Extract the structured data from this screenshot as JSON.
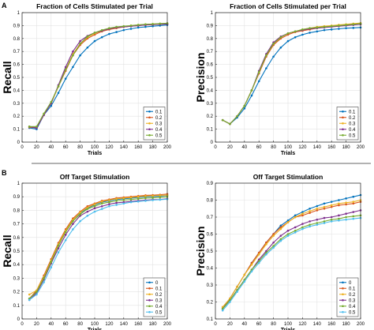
{
  "panels": [
    {
      "letter": "A"
    },
    {
      "letter": "B"
    }
  ],
  "colors": [
    "#0072bd",
    "#d95319",
    "#edb120",
    "#7e2f8e",
    "#77ac30",
    "#4dbeee"
  ],
  "chart_data": [
    {
      "type": "line",
      "title": "Fraction of Cells Stimulated per Trial",
      "xlabel": "Trials",
      "ylabel": "Recall",
      "xlim": [
        0,
        200
      ],
      "ylim": [
        0,
        1
      ],
      "xticks": [
        0,
        20,
        40,
        60,
        80,
        100,
        120,
        140,
        160,
        180,
        200
      ],
      "yticks": [
        0,
        0.1,
        0.2,
        0.3,
        0.4,
        0.5,
        0.6,
        0.7,
        0.8,
        0.9,
        1
      ],
      "x": [
        10,
        20,
        30,
        40,
        50,
        60,
        70,
        80,
        90,
        100,
        110,
        120,
        130,
        140,
        150,
        160,
        170,
        180,
        190,
        200
      ],
      "legend_position": "bottom-right",
      "series": [
        {
          "name": "0.1",
          "values": [
            0.11,
            0.1,
            0.21,
            0.28,
            0.38,
            0.49,
            0.58,
            0.67,
            0.73,
            0.78,
            0.81,
            0.835,
            0.85,
            0.865,
            0.875,
            0.885,
            0.89,
            0.895,
            0.9,
            0.905
          ]
        },
        {
          "name": "0.2",
          "values": [
            0.115,
            0.11,
            0.21,
            0.3,
            0.43,
            0.55,
            0.67,
            0.75,
            0.8,
            0.83,
            0.855,
            0.87,
            0.88,
            0.89,
            0.895,
            0.9,
            0.905,
            0.907,
            0.91,
            0.912
          ]
        },
        {
          "name": "0.3",
          "values": [
            0.12,
            0.115,
            0.22,
            0.3,
            0.43,
            0.56,
            0.68,
            0.76,
            0.81,
            0.84,
            0.86,
            0.875,
            0.885,
            0.89,
            0.9,
            0.905,
            0.91,
            0.912,
            0.915,
            0.917
          ]
        },
        {
          "name": "0.4",
          "values": [
            0.12,
            0.11,
            0.21,
            0.3,
            0.44,
            0.58,
            0.7,
            0.78,
            0.82,
            0.845,
            0.86,
            0.875,
            0.885,
            0.89,
            0.895,
            0.9,
            0.905,
            0.908,
            0.91,
            0.912
          ]
        },
        {
          "name": "0.5",
          "values": [
            0.12,
            0.12,
            0.22,
            0.31,
            0.43,
            0.56,
            0.67,
            0.76,
            0.815,
            0.845,
            0.865,
            0.88,
            0.89,
            0.895,
            0.9,
            0.905,
            0.91,
            0.912,
            0.915,
            0.918
          ]
        }
      ]
    },
    {
      "type": "line",
      "title": "Fraction of Cells Stimulated per Trial",
      "xlabel": "Trials",
      "ylabel": "Precision",
      "xlim": [
        0,
        200
      ],
      "ylim": [
        0,
        1
      ],
      "xticks": [
        0,
        20,
        40,
        60,
        80,
        100,
        120,
        140,
        160,
        180,
        200
      ],
      "yticks": [
        0,
        0.1,
        0.2,
        0.3,
        0.4,
        0.5,
        0.6,
        0.7,
        0.8,
        0.9,
        1
      ],
      "x": [
        10,
        20,
        30,
        40,
        50,
        60,
        70,
        80,
        90,
        100,
        110,
        120,
        130,
        140,
        150,
        160,
        170,
        180,
        190,
        200
      ],
      "legend_position": "bottom-right",
      "series": [
        {
          "name": "0.1",
          "values": [
            0.17,
            0.14,
            0.19,
            0.26,
            0.36,
            0.47,
            0.57,
            0.66,
            0.73,
            0.78,
            0.81,
            0.83,
            0.845,
            0.855,
            0.865,
            0.87,
            0.875,
            0.88,
            0.882,
            0.885
          ]
        },
        {
          "name": "0.2",
          "values": [
            0.17,
            0.14,
            0.2,
            0.28,
            0.4,
            0.53,
            0.66,
            0.75,
            0.8,
            0.83,
            0.85,
            0.86,
            0.87,
            0.88,
            0.89,
            0.895,
            0.9,
            0.905,
            0.907,
            0.91
          ]
        },
        {
          "name": "0.3",
          "values": [
            0.17,
            0.14,
            0.2,
            0.28,
            0.4,
            0.54,
            0.67,
            0.76,
            0.81,
            0.84,
            0.855,
            0.87,
            0.88,
            0.89,
            0.895,
            0.9,
            0.905,
            0.91,
            0.915,
            0.92
          ]
        },
        {
          "name": "0.4",
          "values": [
            0.17,
            0.14,
            0.2,
            0.28,
            0.4,
            0.55,
            0.68,
            0.77,
            0.815,
            0.84,
            0.855,
            0.865,
            0.875,
            0.88,
            0.885,
            0.89,
            0.895,
            0.9,
            0.905,
            0.91
          ]
        },
        {
          "name": "0.5",
          "values": [
            0.17,
            0.14,
            0.2,
            0.28,
            0.4,
            0.54,
            0.67,
            0.76,
            0.81,
            0.84,
            0.855,
            0.87,
            0.88,
            0.885,
            0.89,
            0.895,
            0.9,
            0.905,
            0.91,
            0.915
          ]
        }
      ]
    },
    {
      "type": "line",
      "title": "Off Target Stimulation",
      "xlabel": "Trials",
      "ylabel": "Recall",
      "xlim": [
        0,
        200
      ],
      "ylim": [
        0,
        1
      ],
      "xticks": [
        0,
        20,
        40,
        60,
        80,
        100,
        120,
        140,
        160,
        180,
        200
      ],
      "yticks": [
        0,
        0.1,
        0.2,
        0.3,
        0.4,
        0.5,
        0.6,
        0.7,
        0.8,
        0.9,
        1
      ],
      "x": [
        10,
        20,
        30,
        40,
        50,
        60,
        70,
        80,
        90,
        100,
        110,
        120,
        130,
        140,
        150,
        160,
        170,
        180,
        190,
        200
      ],
      "legend_position": "bottom-right",
      "series": [
        {
          "name": "0",
          "values": [
            0.15,
            0.2,
            0.31,
            0.43,
            0.55,
            0.65,
            0.73,
            0.78,
            0.815,
            0.84,
            0.86,
            0.87,
            0.88,
            0.885,
            0.89,
            0.895,
            0.9,
            0.902,
            0.905,
            0.91
          ]
        },
        {
          "name": "0.1",
          "values": [
            0.15,
            0.21,
            0.32,
            0.44,
            0.56,
            0.66,
            0.74,
            0.79,
            0.83,
            0.85,
            0.87,
            0.88,
            0.89,
            0.895,
            0.9,
            0.905,
            0.91,
            0.912,
            0.915,
            0.92
          ]
        },
        {
          "name": "0.2",
          "values": [
            0.18,
            0.21,
            0.31,
            0.43,
            0.55,
            0.65,
            0.73,
            0.785,
            0.82,
            0.845,
            0.865,
            0.875,
            0.885,
            0.89,
            0.895,
            0.9,
            0.905,
            0.907,
            0.91,
            0.912
          ]
        },
        {
          "name": "0.3",
          "values": [
            0.14,
            0.19,
            0.29,
            0.41,
            0.52,
            0.62,
            0.7,
            0.76,
            0.79,
            0.815,
            0.83,
            0.845,
            0.855,
            0.86,
            0.865,
            0.87,
            0.875,
            0.878,
            0.88,
            0.885
          ]
        },
        {
          "name": "0.4",
          "values": [
            0.15,
            0.2,
            0.3,
            0.42,
            0.54,
            0.64,
            0.72,
            0.77,
            0.81,
            0.83,
            0.85,
            0.86,
            0.87,
            0.875,
            0.88,
            0.885,
            0.89,
            0.892,
            0.895,
            0.9
          ]
        },
        {
          "name": "0.5",
          "values": [
            0.14,
            0.18,
            0.27,
            0.38,
            0.49,
            0.58,
            0.66,
            0.72,
            0.76,
            0.79,
            0.81,
            0.83,
            0.84,
            0.85,
            0.86,
            0.865,
            0.87,
            0.875,
            0.878,
            0.882
          ]
        }
      ]
    },
    {
      "type": "line",
      "title": "Off Target Stimulation",
      "xlabel": "Trials",
      "ylabel": "Precision",
      "xlim": [
        0,
        200
      ],
      "ylim": [
        0.1,
        0.9
      ],
      "xticks": [
        0,
        20,
        40,
        60,
        80,
        100,
        120,
        140,
        160,
        180,
        200
      ],
      "yticks": [
        0.1,
        0.2,
        0.3,
        0.4,
        0.5,
        0.6,
        0.7,
        0.8,
        0.9
      ],
      "x": [
        10,
        20,
        30,
        40,
        50,
        60,
        70,
        80,
        90,
        100,
        110,
        120,
        130,
        140,
        150,
        160,
        170,
        180,
        190,
        200
      ],
      "legend_position": "bottom-right",
      "series": [
        {
          "name": "0",
          "values": [
            0.16,
            0.22,
            0.29,
            0.36,
            0.43,
            0.49,
            0.55,
            0.6,
            0.65,
            0.68,
            0.71,
            0.73,
            0.75,
            0.765,
            0.78,
            0.79,
            0.8,
            0.81,
            0.82,
            0.83
          ]
        },
        {
          "name": "0.1",
          "values": [
            0.17,
            0.22,
            0.29,
            0.36,
            0.43,
            0.49,
            0.55,
            0.6,
            0.64,
            0.67,
            0.7,
            0.71,
            0.725,
            0.74,
            0.75,
            0.76,
            0.77,
            0.775,
            0.78,
            0.79
          ]
        },
        {
          "name": "0.2",
          "values": [
            0.17,
            0.22,
            0.29,
            0.36,
            0.42,
            0.48,
            0.54,
            0.59,
            0.63,
            0.67,
            0.7,
            0.72,
            0.735,
            0.75,
            0.76,
            0.77,
            0.78,
            0.785,
            0.79,
            0.8
          ]
        },
        {
          "name": "0.3",
          "values": [
            0.16,
            0.21,
            0.27,
            0.33,
            0.39,
            0.45,
            0.5,
            0.55,
            0.59,
            0.62,
            0.64,
            0.66,
            0.675,
            0.685,
            0.695,
            0.7,
            0.71,
            0.72,
            0.73,
            0.74
          ]
        },
        {
          "name": "0.4",
          "values": [
            0.16,
            0.21,
            0.27,
            0.33,
            0.39,
            0.44,
            0.49,
            0.53,
            0.57,
            0.6,
            0.62,
            0.64,
            0.655,
            0.665,
            0.675,
            0.685,
            0.69,
            0.7,
            0.705,
            0.71
          ]
        },
        {
          "name": "0.5",
          "values": [
            0.15,
            0.2,
            0.26,
            0.32,
            0.38,
            0.43,
            0.48,
            0.52,
            0.56,
            0.59,
            0.61,
            0.63,
            0.645,
            0.655,
            0.665,
            0.675,
            0.68,
            0.685,
            0.69,
            0.695
          ]
        }
      ]
    }
  ]
}
